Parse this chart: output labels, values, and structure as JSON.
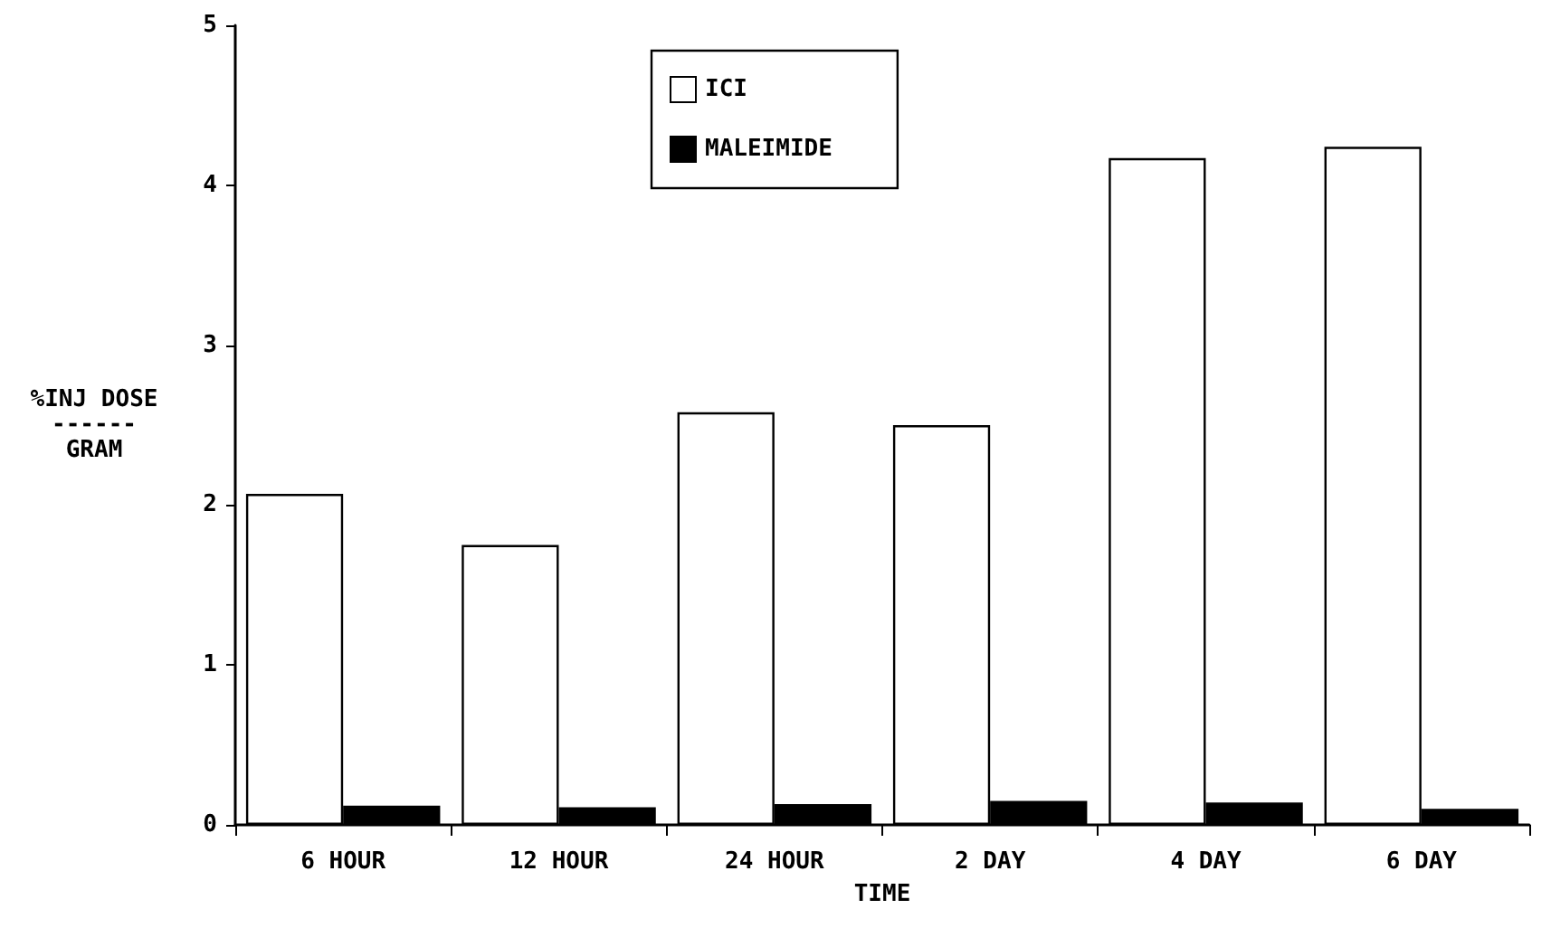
{
  "chart_data": {
    "type": "bar",
    "xlabel": "TIME",
    "ylabel": "%INJ DOSE\n------\nGRAM",
    "categories": [
      "6 HOUR",
      "12 HOUR",
      "24 HOUR",
      "2 DAY",
      "4 DAY",
      "6 DAY"
    ],
    "series": [
      {
        "name": "ICI",
        "color": "#ffffff",
        "values": [
          2.07,
          1.75,
          2.58,
          2.5,
          4.17,
          4.24
        ]
      },
      {
        "name": "MALEIMIDE",
        "color": "#000000",
        "values": [
          0.12,
          0.11,
          0.13,
          0.15,
          0.14,
          0.1
        ]
      }
    ],
    "ylim": [
      0,
      5
    ],
    "yticks": [
      0,
      1,
      2,
      3,
      4,
      5
    ],
    "grid": false,
    "legend": "top"
  }
}
